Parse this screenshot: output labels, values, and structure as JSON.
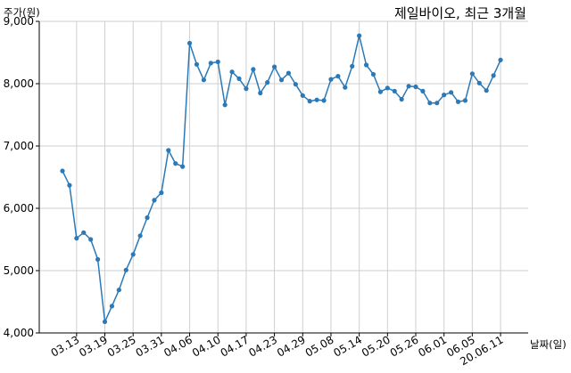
{
  "chart_data": {
    "type": "line",
    "title": "제일바이오, 최근 3개월",
    "ylabel": "주가(원)",
    "xlabel": "날짜(일)",
    "ylim": [
      4000,
      9000
    ],
    "yticks": [
      4000,
      5000,
      6000,
      7000,
      8000,
      9000
    ],
    "ytick_labels": [
      "4,000",
      "5,000",
      "6,000",
      "7,000",
      "8,000",
      "9,000"
    ],
    "xtick_labels": [
      "03.13",
      "03.19",
      "03.25",
      "03.31",
      "04.06",
      "04.10",
      "04.17",
      "04.23",
      "04.29",
      "05.08",
      "05.14",
      "05.20",
      "05.26",
      "06.01",
      "06.05",
      "20.06.11"
    ],
    "xtick_index": [
      2,
      6,
      10,
      14,
      18,
      22,
      26,
      30,
      34,
      38,
      42,
      46,
      50,
      54,
      58,
      62
    ],
    "grid": true,
    "color": "#2a7ab9",
    "series": [
      {
        "values": [
          6600,
          6370,
          5520,
          5610,
          5500,
          5180,
          4180,
          4430,
          4690,
          5010,
          5260,
          5560,
          5850,
          6130,
          6250,
          6930,
          6720,
          6670,
          8650,
          8310,
          8060,
          8330,
          8350,
          7660,
          8190,
          8080,
          7920,
          8230,
          7850,
          8020,
          8270,
          8060,
          8170,
          7990,
          7810,
          7720,
          7740,
          7730,
          8070,
          8120,
          7940,
          8280,
          8770,
          8300,
          8150,
          7870,
          7930,
          7880,
          7750,
          7960,
          7950,
          7880,
          7690,
          7690,
          7820,
          7860,
          7710,
          7730,
          8160,
          8010,
          7890,
          8130,
          8380
        ]
      }
    ]
  }
}
